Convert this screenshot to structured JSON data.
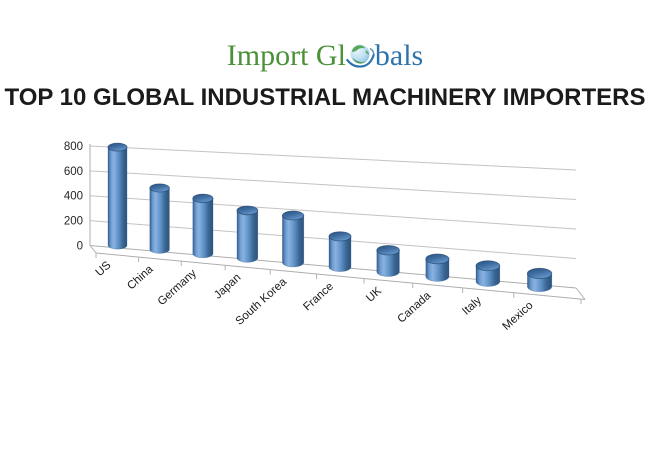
{
  "logo": {
    "part1": "Import Gl",
    "part2": "bals",
    "green_color": "#4a9138",
    "blue_color": "#2d74ae"
  },
  "title": {
    "text": "TOP 10 GLOBAL INDUSTRIAL MACHINERY IMPORTERS"
  },
  "chart_data": {
    "type": "bar",
    "style": "3d-cylinder",
    "title": "",
    "xlabel": "",
    "ylabel": "",
    "categories": [
      "US",
      "China",
      "Germany",
      "Japan",
      "South Korea",
      "France",
      "UK",
      "Canada",
      "Italy",
      "Mexico"
    ],
    "values": [
      780,
      480,
      425,
      360,
      350,
      225,
      155,
      125,
      110,
      90
    ],
    "ylim": [
      0,
      800
    ],
    "yticks": [
      0,
      200,
      400,
      600,
      800
    ],
    "grid": true,
    "legend_position": "none",
    "bar_color": "#4f81bd",
    "bar_edge_color": "#2c5480",
    "grid_color": "#c3c3c3",
    "axis_color": "#adadad",
    "label_color": "#1a1a1a"
  }
}
